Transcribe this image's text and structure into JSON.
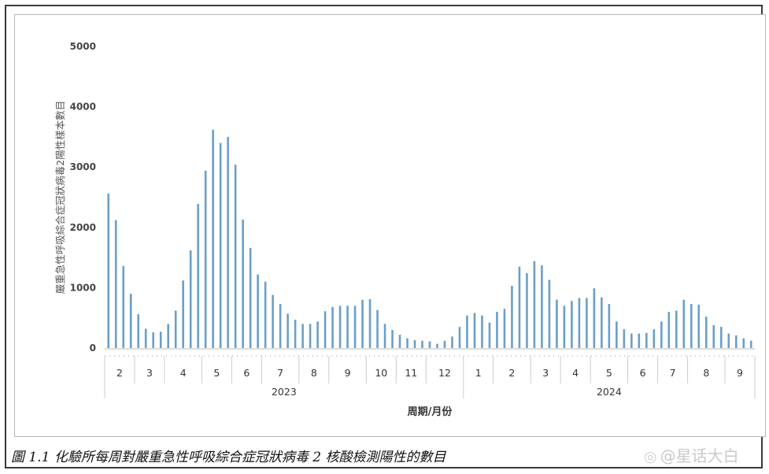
{
  "chart_data": {
    "type": "bar",
    "ylabel": "嚴重急性呼吸綜合症冠狀病毒2陽性樣本數目",
    "xlabel": "周期/月份",
    "ylim": [
      0,
      5000
    ],
    "yticks": [
      0,
      1000,
      2000,
      3000,
      4000,
      5000
    ],
    "grid": false,
    "legend": "none",
    "bar_color": "#6a9fc9",
    "years": [
      {
        "label": "2023",
        "months": [
          {
            "label": "2",
            "weeks": 4
          },
          {
            "label": "3",
            "weeks": 4
          },
          {
            "label": "4",
            "weeks": 5
          },
          {
            "label": "5",
            "weeks": 4
          },
          {
            "label": "6",
            "weeks": 4
          },
          {
            "label": "7",
            "weeks": 5
          },
          {
            "label": "8",
            "weeks": 4
          },
          {
            "label": "9",
            "weeks": 5
          },
          {
            "label": "10",
            "weeks": 4
          },
          {
            "label": "11",
            "weeks": 4
          },
          {
            "label": "12",
            "weeks": 5
          }
        ]
      },
      {
        "label": "2024",
        "months": [
          {
            "label": "1",
            "weeks": 4
          },
          {
            "label": "2",
            "weeks": 5
          },
          {
            "label": "3",
            "weeks": 4
          },
          {
            "label": "4",
            "weeks": 4
          },
          {
            "label": "5",
            "weeks": 5
          },
          {
            "label": "6",
            "weeks": 4
          },
          {
            "label": "7",
            "weeks": 4
          },
          {
            "label": "8",
            "weeks": 5
          },
          {
            "label": "9",
            "weeks": 4
          }
        ]
      }
    ],
    "values": [
      2560,
      2120,
      1360,
      900,
      560,
      320,
      260,
      270,
      400,
      620,
      1120,
      1620,
      2390,
      2940,
      3620,
      3400,
      3500,
      3040,
      2130,
      1660,
      1220,
      1100,
      880,
      730,
      570,
      470,
      400,
      400,
      440,
      610,
      680,
      700,
      700,
      700,
      800,
      810,
      630,
      400,
      300,
      220,
      160,
      130,
      120,
      110,
      70,
      120,
      190,
      350,
      540,
      580,
      540,
      420,
      600,
      650,
      1030,
      1350,
      1240,
      1440,
      1370,
      1130,
      800,
      700,
      780,
      830,
      830,
      990,
      840,
      730,
      440,
      310,
      240,
      240,
      250,
      310,
      440,
      600,
      620,
      800,
      730,
      720,
      520,
      380,
      350,
      240,
      210,
      160,
      120
    ]
  },
  "caption": "圖 1.1  化驗所每周對嚴重急性呼吸綜合症冠狀病毒 2 核酸檢測陽性的數目",
  "watermark": "@星话大白"
}
